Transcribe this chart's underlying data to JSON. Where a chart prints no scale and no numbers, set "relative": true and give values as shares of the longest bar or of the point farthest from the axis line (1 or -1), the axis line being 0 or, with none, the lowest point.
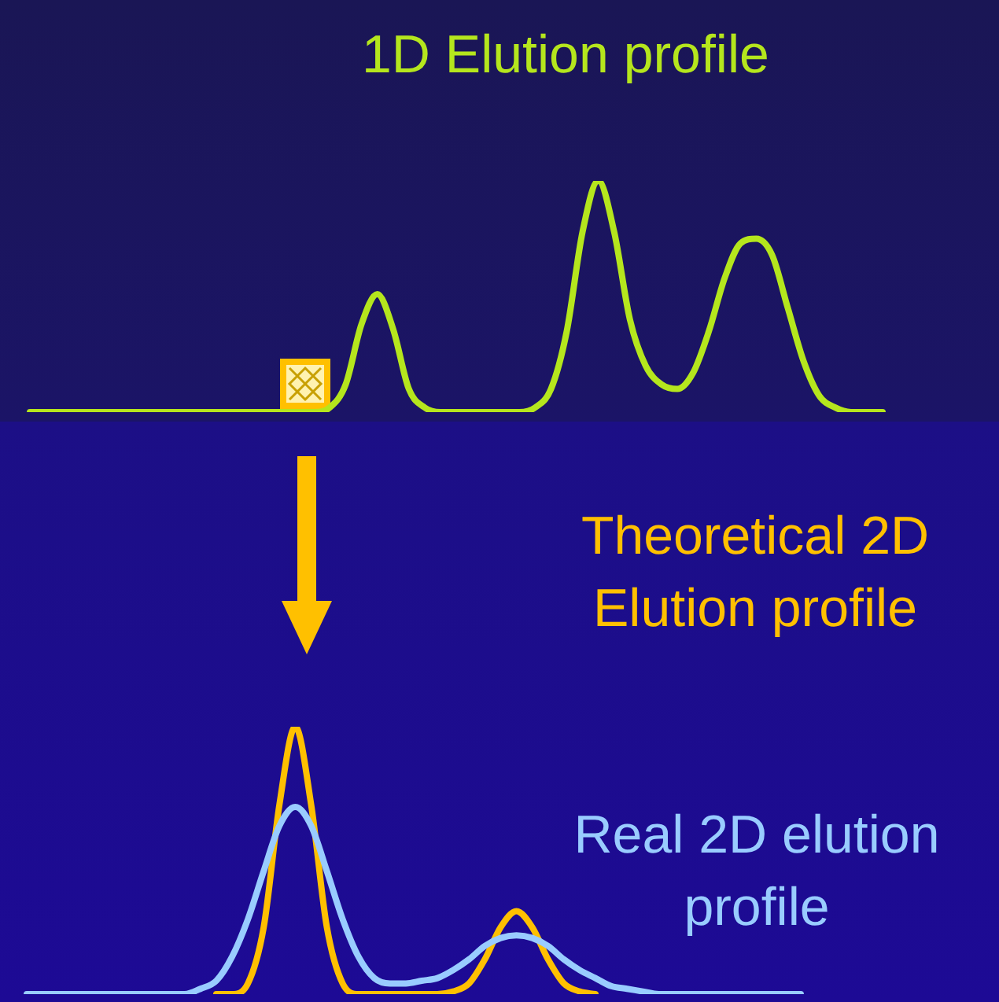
{
  "chart_data": [
    {
      "type": "line",
      "title": "1D Elution profile",
      "relative": true,
      "marker": "none",
      "color": "#b5e61d",
      "categories": [
        null,
        null,
        null,
        null,
        null,
        null,
        null,
        null,
        null,
        null,
        null,
        null,
        null,
        null,
        null,
        null,
        null,
        null,
        null,
        null,
        null,
        null,
        null,
        null,
        null,
        null,
        null,
        null,
        null,
        null,
        null,
        null,
        null,
        null,
        null,
        null,
        null,
        null,
        null,
        null,
        null,
        null,
        null,
        null,
        null,
        null,
        null,
        null,
        null,
        null,
        null,
        null,
        null,
        null,
        null
      ],
      "values": [
        0,
        0,
        0,
        0,
        0,
        0,
        0,
        0,
        0,
        0,
        0,
        0,
        0,
        0,
        0,
        0,
        0,
        0,
        0,
        0.02,
        0.12,
        0.38,
        0.51,
        0.36,
        0.1,
        0.02,
        0,
        0,
        0,
        0,
        0,
        0,
        0.02,
        0.1,
        0.35,
        0.78,
        1,
        0.78,
        0.4,
        0.2,
        0.12,
        0.1,
        0.17,
        0.35,
        0.58,
        0.73,
        0.75,
        0.68,
        0.45,
        0.22,
        0.07,
        0.02,
        0,
        0,
        0
      ]
    },
    {
      "type": "line",
      "relative": true,
      "marker": "none",
      "categories": [
        null,
        null,
        null,
        null,
        null,
        null,
        null,
        null,
        null,
        null,
        null,
        null,
        null,
        null,
        null,
        null,
        null,
        null,
        null,
        null,
        null,
        null,
        null,
        null,
        null,
        null,
        null,
        null,
        null,
        null,
        null,
        null,
        null,
        null,
        null,
        null,
        null,
        null,
        null,
        null,
        null,
        null,
        null,
        null,
        null,
        null,
        null,
        null,
        null,
        null
      ],
      "series": [
        {
          "name": "Theoretical 2D Elution profile",
          "color": "#ffc000",
          "values": [
            null,
            null,
            null,
            null,
            null,
            null,
            null,
            null,
            null,
            null,
            null,
            null,
            0,
            0,
            0.04,
            0.25,
            0.71,
            1,
            0.71,
            0.25,
            0.04,
            0,
            0,
            0,
            0,
            0,
            0,
            0.01,
            0.04,
            0.13,
            0.25,
            0.31,
            0.25,
            0.13,
            0.04,
            0.01,
            0,
            null,
            null,
            null,
            null,
            null,
            null,
            null,
            null,
            null,
            null,
            null,
            null,
            null
          ]
        },
        {
          "name": "Real 2D elution profile",
          "color": "#99ccff",
          "values": [
            0,
            0,
            0,
            0,
            0,
            0,
            0,
            0,
            0,
            0,
            0,
            0.02,
            0.05,
            0.14,
            0.28,
            0.46,
            0.63,
            0.7,
            0.63,
            0.46,
            0.28,
            0.14,
            0.06,
            0.04,
            0.04,
            0.05,
            0.06,
            0.09,
            0.13,
            0.18,
            0.21,
            0.22,
            0.21,
            0.18,
            0.13,
            0.09,
            0.06,
            0.03,
            0.02,
            0.01,
            0,
            0,
            0,
            0,
            0,
            0,
            0,
            0,
            0,
            0
          ]
        }
      ]
    }
  ]
}
